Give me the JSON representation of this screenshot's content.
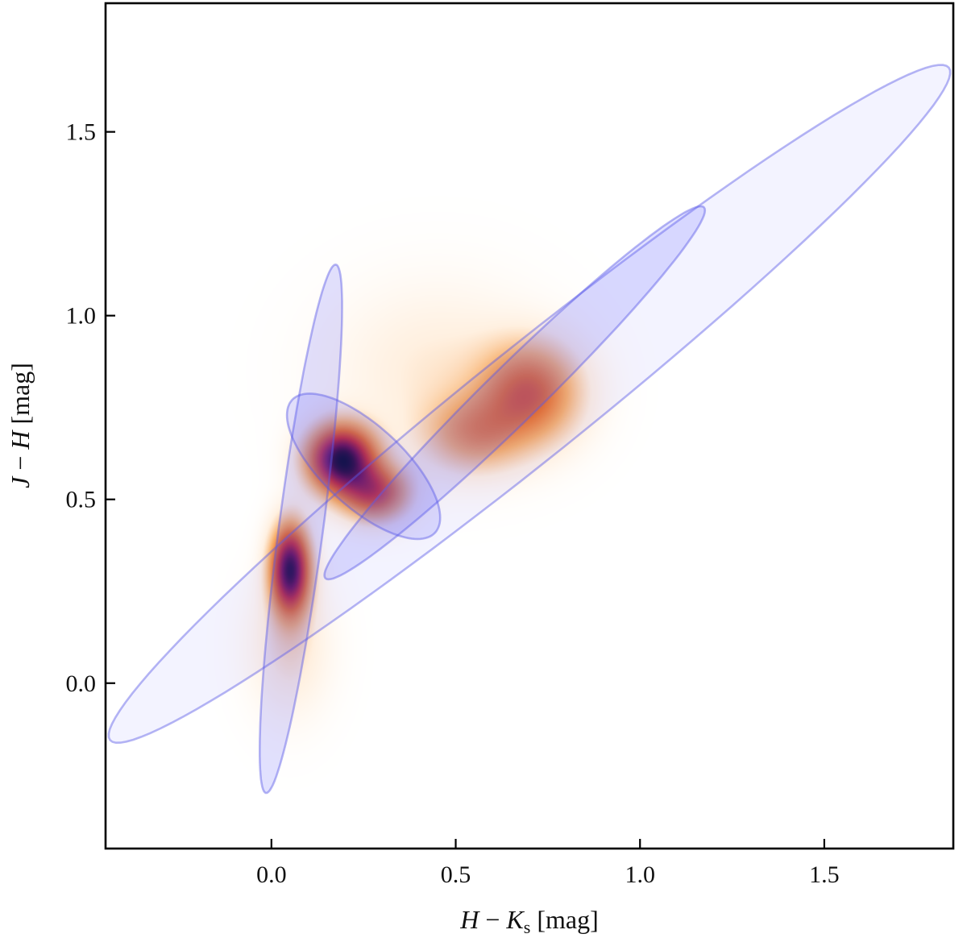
{
  "chart_data": {
    "type": "density_with_ellipses",
    "title": "",
    "xlabel": {
      "var1": "H",
      "minus": " − ",
      "var2": "K",
      "sub": "s",
      "unit": " [mag]"
    },
    "ylabel": {
      "var1": "J",
      "minus": " − ",
      "var2": "H",
      "unit": " [mag]"
    },
    "xlim": [
      -0.45,
      1.85
    ],
    "ylim": [
      -0.45,
      1.85
    ],
    "xticks": [
      {
        "value": 0.0,
        "label": "0.0"
      },
      {
        "value": 0.5,
        "label": "0.5"
      },
      {
        "value": 1.0,
        "label": "1.0"
      },
      {
        "value": 1.5,
        "label": "1.5"
      }
    ],
    "yticks": [
      {
        "value": 0.0,
        "label": "0.0"
      },
      {
        "value": 0.5,
        "label": "0.5"
      },
      {
        "value": 1.0,
        "label": "1.0"
      },
      {
        "value": 1.5,
        "label": "1.5"
      }
    ],
    "grid": false,
    "density_colormap": "white-orange-red-purple-black",
    "density_peaks": [
      {
        "x": 0.19,
        "y": 0.61,
        "weight": 1.0,
        "sx": 0.06,
        "sy": 0.06
      },
      {
        "x": 0.05,
        "y": 0.31,
        "weight": 0.95,
        "sx": 0.035,
        "sy": 0.08
      },
      {
        "x": 0.28,
        "y": 0.52,
        "weight": 0.55,
        "sx": 0.06,
        "sy": 0.05
      },
      {
        "x": 0.7,
        "y": 0.79,
        "weight": 0.45,
        "sx": 0.09,
        "sy": 0.09
      },
      {
        "x": 0.55,
        "y": 0.68,
        "weight": 0.28,
        "sx": 0.09,
        "sy": 0.07
      },
      {
        "x": 0.05,
        "y": 0.1,
        "weight": 0.12,
        "sx": 0.07,
        "sy": 0.12
      },
      {
        "x": 0.45,
        "y": 0.85,
        "weight": 0.1,
        "sx": 0.18,
        "sy": 0.15
      }
    ],
    "ellipses": [
      {
        "name": "broad",
        "cx": 0.7,
        "cy": 0.76,
        "width": 2.92,
        "height": 0.3,
        "angle_deg": 38.8,
        "alpha": 0.07
      },
      {
        "name": "giant-branch",
        "cx": 0.66,
        "cy": 0.79,
        "width": 1.44,
        "height": 0.15,
        "angle_deg": 44.5,
        "alpha": 0.18
      },
      {
        "name": "dwarf-branch",
        "cx": 0.08,
        "cy": 0.42,
        "width": 1.45,
        "height": 0.12,
        "angle_deg": 82.5,
        "alpha": 0.18
      },
      {
        "name": "core",
        "cx": 0.25,
        "cy": 0.59,
        "width": 0.53,
        "height": 0.22,
        "angle_deg": -43,
        "alpha": 0.18
      }
    ],
    "ellipse_color": "#5a5aff",
    "ellipse_edge": "#5a5ae6"
  }
}
